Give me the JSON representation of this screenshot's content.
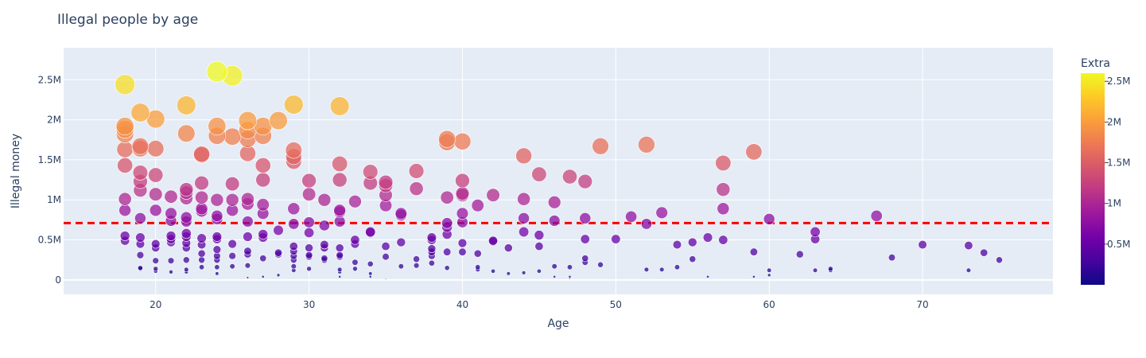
{
  "chart_data": {
    "type": "scatter",
    "title": "Illegal people by age",
    "xlabel": "Age",
    "ylabel": "Illegal money",
    "xlim": [
      14,
      78.5
    ],
    "ylim": [
      -180000,
      2900000
    ],
    "x_ticks": [
      20,
      30,
      40,
      50,
      60,
      70
    ],
    "x_tick_labels": [
      "20",
      "30",
      "40",
      "50",
      "60",
      "70"
    ],
    "y_ticks": [
      0,
      500000,
      1000000,
      1500000,
      2000000,
      2500000
    ],
    "y_tick_labels": [
      "0",
      "0.5M",
      "1M",
      "1.5M",
      "2M",
      "2.5M"
    ],
    "grid": true,
    "reference_line": {
      "y": 710000,
      "color": "#ff0000",
      "style": "dashed"
    },
    "colorbar": {
      "title": "Extra",
      "min": 0,
      "max": 2600000,
      "ticks": [
        500000,
        1000000,
        1500000,
        2000000,
        2500000
      ],
      "tick_labels": [
        "0.5M",
        "1M",
        "1.5M",
        "2M",
        "2.5M"
      ],
      "colorscale": [
        "#0d0887",
        "#46039f",
        "#7201a8",
        "#9c179e",
        "#bd3786",
        "#d8576b",
        "#ed7953",
        "#fb9f3a",
        "#fdca26",
        "#f0f921"
      ]
    },
    "points": [
      [
        18,
        2440000
      ],
      [
        18,
        1920000
      ],
      [
        18,
        1880000
      ],
      [
        18,
        1820000
      ],
      [
        18,
        1630000
      ],
      [
        18,
        1430000
      ],
      [
        18,
        1010000
      ],
      [
        18,
        870000
      ],
      [
        18,
        550000
      ],
      [
        18,
        490000
      ],
      [
        19,
        2090000
      ],
      [
        19,
        1670000
      ],
      [
        19,
        1640000
      ],
      [
        19,
        1340000
      ],
      [
        19,
        1230000
      ],
      [
        19,
        1120000
      ],
      [
        19,
        770000
      ],
      [
        19,
        530000
      ],
      [
        19,
        450000
      ],
      [
        19,
        310000
      ],
      [
        19,
        150000
      ],
      [
        19,
        140000
      ],
      [
        20,
        2010000
      ],
      [
        20,
        1640000
      ],
      [
        20,
        1310000
      ],
      [
        20,
        1070000
      ],
      [
        20,
        870000
      ],
      [
        20,
        450000
      ],
      [
        20,
        400000
      ],
      [
        20,
        240000
      ],
      [
        20,
        140000
      ],
      [
        20,
        110000
      ],
      [
        21,
        1040000
      ],
      [
        21,
        830000
      ],
      [
        21,
        740000
      ],
      [
        21,
        550000
      ],
      [
        21,
        510000
      ],
      [
        21,
        470000
      ],
      [
        21,
        240000
      ],
      [
        21,
        100000
      ],
      [
        22,
        2180000
      ],
      [
        22,
        1830000
      ],
      [
        22,
        1130000
      ],
      [
        22,
        1090000
      ],
      [
        22,
        1020000
      ],
      [
        22,
        780000
      ],
      [
        22,
        730000
      ],
      [
        22,
        580000
      ],
      [
        22,
        540000
      ],
      [
        22,
        460000
      ],
      [
        22,
        400000
      ],
      [
        22,
        250000
      ],
      [
        22,
        130000
      ],
      [
        22,
        100000
      ],
      [
        23,
        1570000
      ],
      [
        23,
        1560000
      ],
      [
        23,
        1210000
      ],
      [
        23,
        1030000
      ],
      [
        23,
        890000
      ],
      [
        23,
        860000
      ],
      [
        23,
        520000
      ],
      [
        23,
        440000
      ],
      [
        23,
        330000
      ],
      [
        23,
        250000
      ],
      [
        23,
        160000
      ],
      [
        24,
        2600000
      ],
      [
        24,
        1920000
      ],
      [
        24,
        1800000
      ],
      [
        24,
        1000000
      ],
      [
        24,
        800000
      ],
      [
        24,
        760000
      ],
      [
        24,
        540000
      ],
      [
        24,
        510000
      ],
      [
        24,
        380000
      ],
      [
        24,
        300000
      ],
      [
        24,
        250000
      ],
      [
        24,
        160000
      ],
      [
        24,
        80000
      ],
      [
        25,
        2550000
      ],
      [
        25,
        1790000
      ],
      [
        25,
        1200000
      ],
      [
        25,
        1000000
      ],
      [
        25,
        870000
      ],
      [
        25,
        450000
      ],
      [
        25,
        300000
      ],
      [
        25,
        170000
      ],
      [
        26,
        1990000
      ],
      [
        26,
        1870000
      ],
      [
        26,
        1760000
      ],
      [
        26,
        1580000
      ],
      [
        26,
        1010000
      ],
      [
        26,
        950000
      ],
      [
        26,
        730000
      ],
      [
        26,
        540000
      ],
      [
        26,
        360000
      ],
      [
        26,
        320000
      ],
      [
        26,
        180000
      ],
      [
        26,
        30000
      ],
      [
        27,
        1920000
      ],
      [
        27,
        1800000
      ],
      [
        27,
        1430000
      ],
      [
        27,
        1250000
      ],
      [
        27,
        940000
      ],
      [
        27,
        830000
      ],
      [
        27,
        570000
      ],
      [
        27,
        530000
      ],
      [
        27,
        270000
      ],
      [
        27,
        40000
      ],
      [
        28,
        1990000
      ],
      [
        28,
        620000
      ],
      [
        28,
        340000
      ],
      [
        28,
        320000
      ],
      [
        28,
        60000
      ],
      [
        29,
        2190000
      ],
      [
        29,
        1620000
      ],
      [
        29,
        1540000
      ],
      [
        29,
        1480000
      ],
      [
        29,
        890000
      ],
      [
        29,
        700000
      ],
      [
        29,
        420000
      ],
      [
        29,
        360000
      ],
      [
        29,
        300000
      ],
      [
        29,
        250000
      ],
      [
        29,
        170000
      ],
      [
        29,
        120000
      ],
      [
        30,
        1240000
      ],
      [
        30,
        1070000
      ],
      [
        30,
        720000
      ],
      [
        30,
        590000
      ],
      [
        30,
        400000
      ],
      [
        30,
        310000
      ],
      [
        30,
        290000
      ],
      [
        30,
        140000
      ],
      [
        31,
        1000000
      ],
      [
        31,
        680000
      ],
      [
        31,
        440000
      ],
      [
        31,
        400000
      ],
      [
        31,
        270000
      ],
      [
        31,
        250000
      ],
      [
        32,
        2170000
      ],
      [
        32,
        1450000
      ],
      [
        32,
        1250000
      ],
      [
        32,
        870000
      ],
      [
        32,
        850000
      ],
      [
        32,
        730000
      ],
      [
        32,
        400000
      ],
      [
        32,
        310000
      ],
      [
        32,
        290000
      ],
      [
        32,
        130000
      ],
      [
        32,
        100000
      ],
      [
        32,
        40000
      ],
      [
        33,
        980000
      ],
      [
        33,
        500000
      ],
      [
        33,
        450000
      ],
      [
        33,
        220000
      ],
      [
        33,
        140000
      ],
      [
        34,
        1350000
      ],
      [
        34,
        1210000
      ],
      [
        34,
        600000
      ],
      [
        34,
        590000
      ],
      [
        34,
        200000
      ],
      [
        34,
        80000
      ],
      [
        34,
        40000
      ],
      [
        35,
        1220000
      ],
      [
        35,
        1180000
      ],
      [
        35,
        1060000
      ],
      [
        35,
        930000
      ],
      [
        35,
        420000
      ],
      [
        35,
        290000
      ],
      [
        35,
        10000
      ],
      [
        36,
        830000
      ],
      [
        36,
        810000
      ],
      [
        36,
        470000
      ],
      [
        36,
        170000
      ],
      [
        37,
        1360000
      ],
      [
        37,
        1140000
      ],
      [
        37,
        260000
      ],
      [
        37,
        180000
      ],
      [
        38,
        530000
      ],
      [
        38,
        500000
      ],
      [
        38,
        390000
      ],
      [
        38,
        350000
      ],
      [
        38,
        300000
      ],
      [
        38,
        210000
      ],
      [
        39,
        1760000
      ],
      [
        39,
        1720000
      ],
      [
        39,
        1030000
      ],
      [
        39,
        710000
      ],
      [
        39,
        660000
      ],
      [
        39,
        570000
      ],
      [
        39,
        350000
      ],
      [
        39,
        150000
      ],
      [
        40,
        1730000
      ],
      [
        40,
        1240000
      ],
      [
        40,
        1080000
      ],
      [
        40,
        1060000
      ],
      [
        40,
        830000
      ],
      [
        40,
        720000
      ],
      [
        40,
        460000
      ],
      [
        40,
        350000
      ],
      [
        41,
        930000
      ],
      [
        41,
        330000
      ],
      [
        41,
        160000
      ],
      [
        41,
        130000
      ],
      [
        42,
        1060000
      ],
      [
        42,
        490000
      ],
      [
        42,
        480000
      ],
      [
        42,
        110000
      ],
      [
        43,
        400000
      ],
      [
        43,
        80000
      ],
      [
        44,
        1550000
      ],
      [
        44,
        1010000
      ],
      [
        44,
        770000
      ],
      [
        44,
        600000
      ],
      [
        44,
        90000
      ],
      [
        45,
        1320000
      ],
      [
        45,
        560000
      ],
      [
        45,
        420000
      ],
      [
        45,
        110000
      ],
      [
        46,
        970000
      ],
      [
        46,
        740000
      ],
      [
        46,
        170000
      ],
      [
        46,
        40000
      ],
      [
        47,
        1290000
      ],
      [
        47,
        160000
      ],
      [
        47,
        40000
      ],
      [
        47,
        20000
      ],
      [
        48,
        1230000
      ],
      [
        48,
        770000
      ],
      [
        48,
        510000
      ],
      [
        48,
        270000
      ],
      [
        48,
        220000
      ],
      [
        49,
        1670000
      ],
      [
        49,
        190000
      ],
      [
        50,
        510000
      ],
      [
        51,
        790000
      ],
      [
        52,
        1690000
      ],
      [
        52,
        700000
      ],
      [
        52,
        130000
      ],
      [
        53,
        840000
      ],
      [
        53,
        130000
      ],
      [
        54,
        440000
      ],
      [
        54,
        160000
      ],
      [
        55,
        470000
      ],
      [
        55,
        260000
      ],
      [
        56,
        530000
      ],
      [
        56,
        40000
      ],
      [
        57,
        1460000
      ],
      [
        57,
        1130000
      ],
      [
        57,
        890000
      ],
      [
        57,
        500000
      ],
      [
        59,
        1600000
      ],
      [
        59,
        350000
      ],
      [
        59,
        40000
      ],
      [
        60,
        760000
      ],
      [
        60,
        120000
      ],
      [
        60,
        60000
      ],
      [
        62,
        320000
      ],
      [
        63,
        600000
      ],
      [
        63,
        510000
      ],
      [
        63,
        120000
      ],
      [
        64,
        140000
      ],
      [
        64,
        120000
      ],
      [
        67,
        800000
      ],
      [
        68,
        280000
      ],
      [
        70,
        440000
      ],
      [
        73,
        430000
      ],
      [
        73,
        120000
      ],
      [
        74,
        340000
      ],
      [
        75,
        250000
      ]
    ]
  }
}
